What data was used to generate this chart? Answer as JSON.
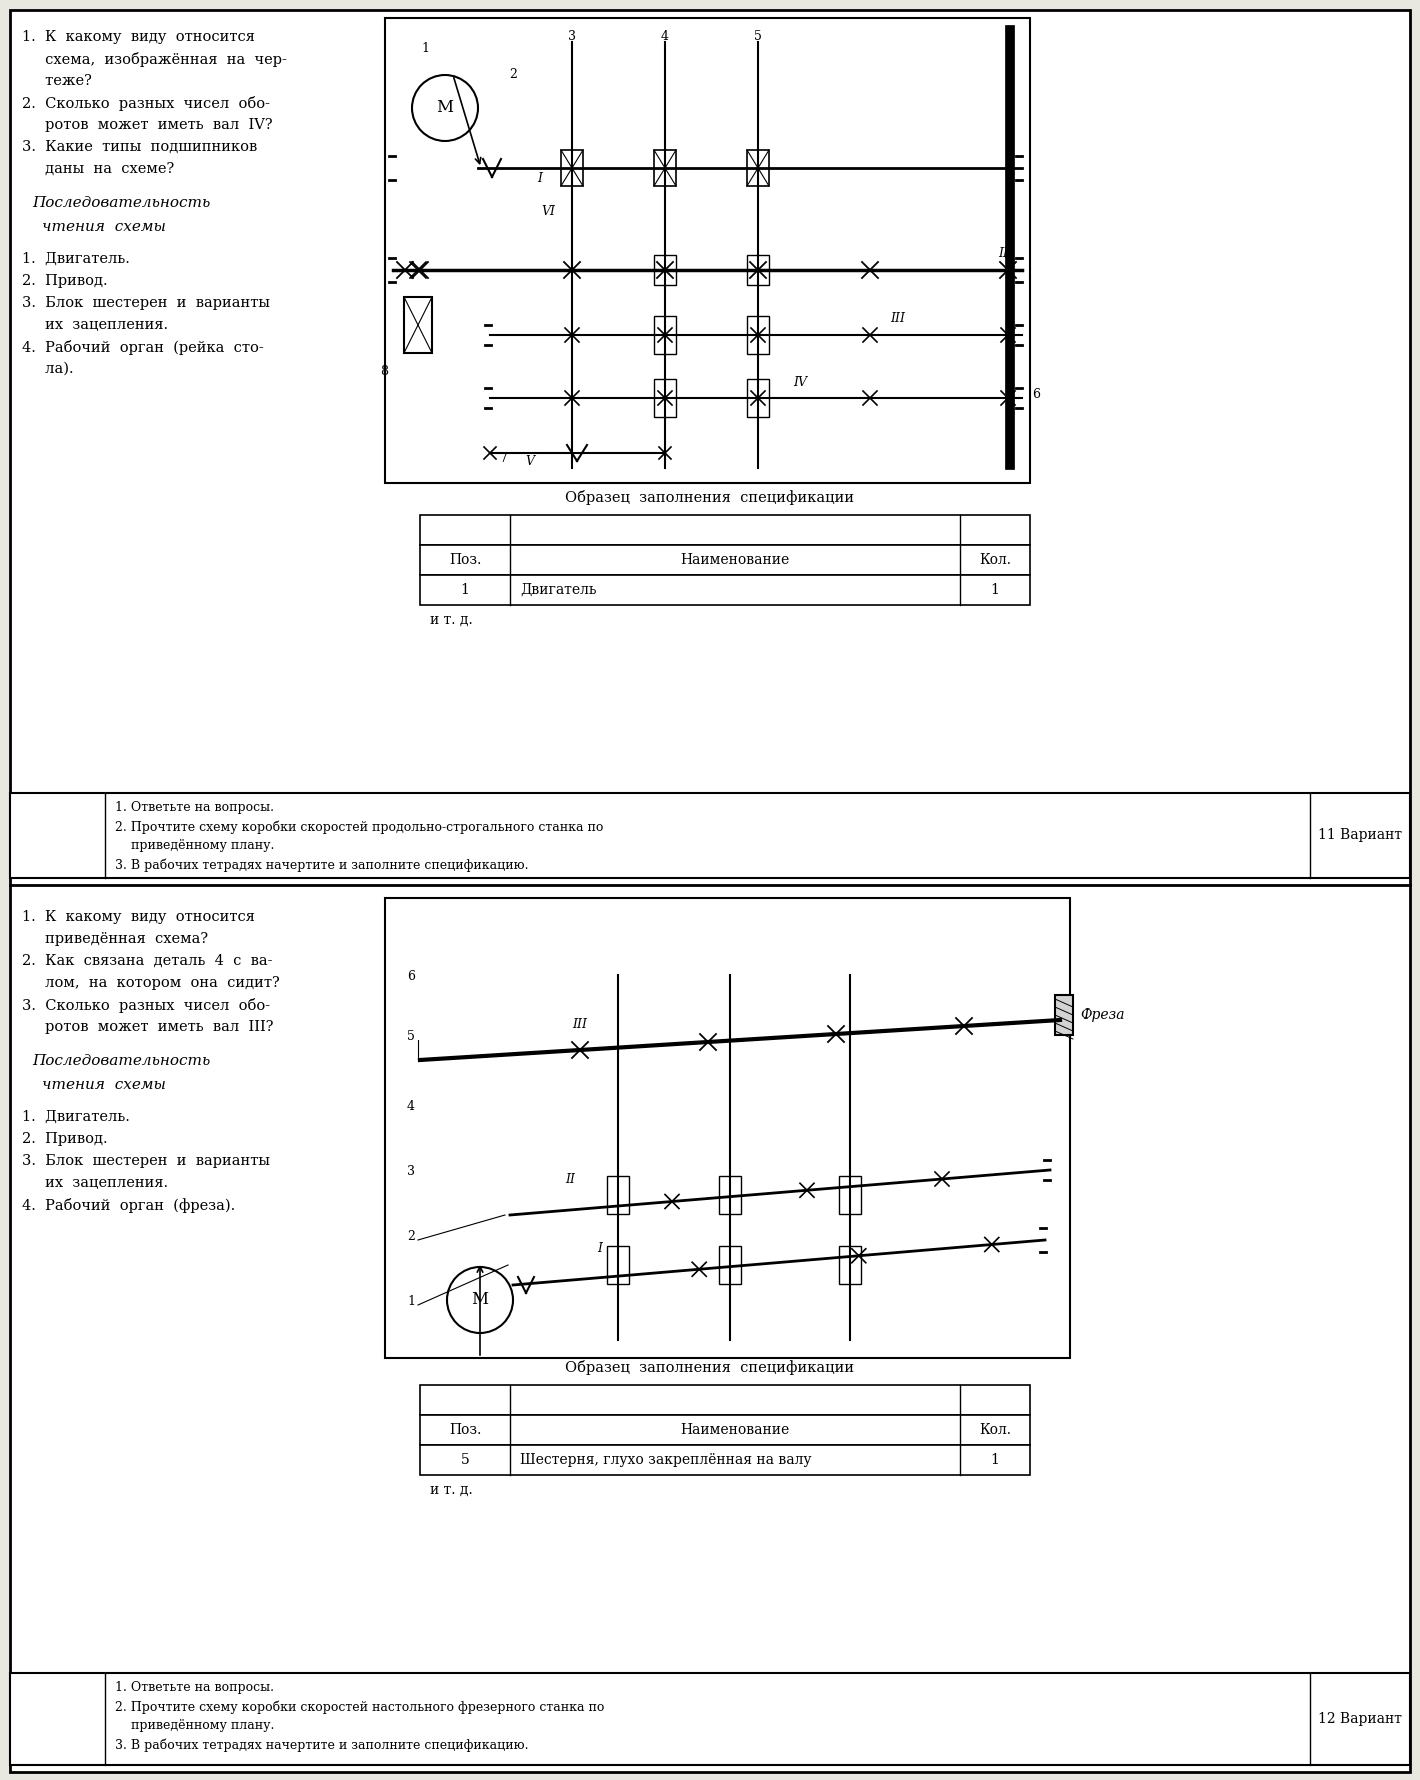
{
  "bg_color": "#e8e8e0",
  "page_bg": "#ffffff",
  "section1": {
    "questions": [
      "1.  К  какому  виду  относится",
      "     схема,  изображённая  на  чер-",
      "     теже?",
      "2.  Сколько  разных  чисел  обо-",
      "     ротов  может  иметь  вал  IV?",
      "3.  Какие  типы  подшипников",
      "     даны  на  схеме?"
    ],
    "seq_title1": "Последовательность",
    "seq_title2": "чтения  схемы",
    "seq_items": [
      "1.  Двигатель.",
      "2.  Привод.",
      "3.  Блок  шестерен  и  варианты",
      "     их  зацепления.",
      "4.  Рабочий  орган  (рейка  сто-",
      "     ла)."
    ],
    "table_title": "Образец  заполнения  спецификации",
    "col_headers": [
      "Поз.",
      "Наименование",
      "Кол."
    ],
    "row1": [
      "1",
      "Двигатель",
      "1"
    ],
    "row2_label": "и т. д.",
    "footer_lines": [
      "1. Ответьте на вопросы.",
      "2. Прочтите схему коробки скоростей продольно-строгального станка по",
      "    приведённому плану.",
      "3. В рабочих тетрадях начертите и заполните спецификацию."
    ],
    "variant": "11 Вариант"
  },
  "section2": {
    "questions": [
      "1.  К  какому  виду  относится",
      "     приведённая  схема?",
      "2.  Как  связана  деталь  4  с  ва-",
      "     лом,  на  котором  она  сидит?",
      "3.  Сколько  разных  чисел  обо-",
      "     ротов  может  иметь  вал  III?"
    ],
    "seq_title1": "Последовательность",
    "seq_title2": "чтения  схемы",
    "seq_items": [
      "1.  Двигатель.",
      "2.  Привод.",
      "3.  Блок  шестерен  и  варианты",
      "     их  зацепления.",
      "4.  Рабочий  орган  (фреза)."
    ],
    "table_title": "Образец  заполнения  спецификации",
    "col_headers": [
      "Поз.",
      "Наименование",
      "Кол."
    ],
    "row1": [
      "5",
      "Шестерня, глухо закреплённая на валу",
      "1"
    ],
    "row2_label": "и т. д.",
    "footer_lines": [
      "1. Ответьте на вопросы.",
      "2. Прочтите схему коробки скоростей настольного фрезерного станка по",
      "    приведённому плану.",
      "3. В рабочих тетрадях начертите и заполните спецификацию."
    ],
    "variant": "12 Вариант"
  }
}
